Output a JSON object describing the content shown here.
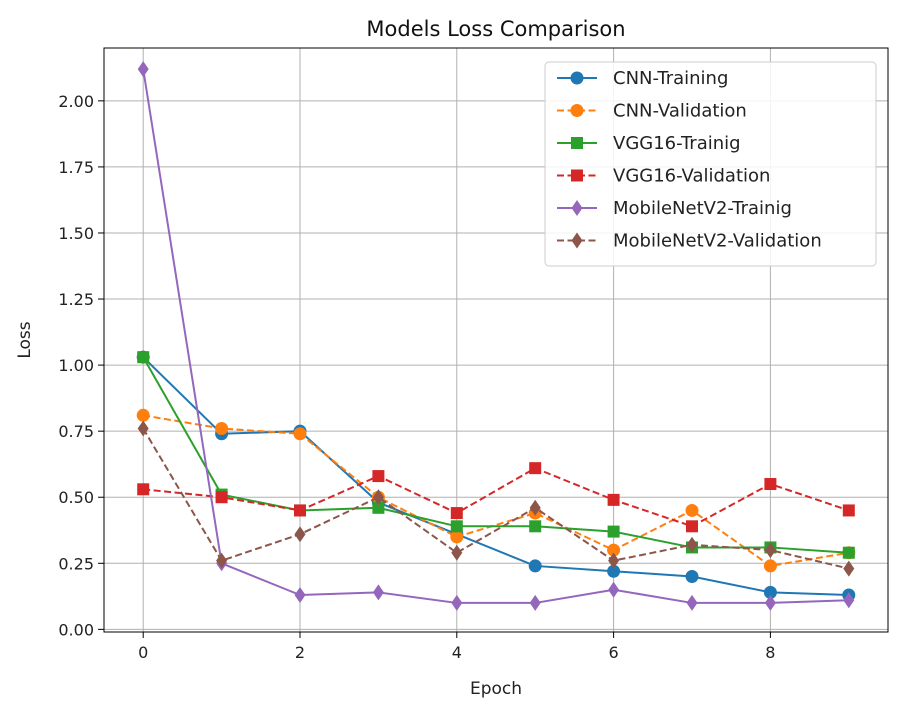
{
  "chart_data": {
    "type": "line",
    "title": "Models Loss Comparison",
    "xlabel": "Epoch",
    "ylabel": "Loss",
    "xlim": [
      -0.5,
      9.5
    ],
    "ylim": [
      -0.01,
      2.2
    ],
    "x_ticks": [
      0,
      2,
      4,
      6,
      8
    ],
    "x_tick_labels": [
      "0",
      "2",
      "4",
      "6",
      "8"
    ],
    "y_ticks": [
      0,
      0.25,
      0.5,
      0.75,
      1.0,
      1.25,
      1.5,
      1.75,
      2.0
    ],
    "y_tick_labels": [
      "0.00",
      "0.25",
      "0.50",
      "0.75",
      "1.00",
      "1.25",
      "1.50",
      "1.75",
      "2.00"
    ],
    "grid": true,
    "legend_position": "top-right",
    "x": [
      0,
      1,
      2,
      3,
      4,
      5,
      6,
      7,
      8,
      9
    ],
    "series": [
      {
        "name": "CNN-Training",
        "color": "#1f77b4",
        "dash": "solid",
        "marker": "circle",
        "values": [
          1.03,
          0.74,
          0.75,
          0.48,
          0.36,
          0.24,
          0.22,
          0.2,
          0.14,
          0.13
        ]
      },
      {
        "name": "CNN-Validation",
        "color": "#ff7f0e",
        "dash": "dashed",
        "marker": "circle",
        "values": [
          0.81,
          0.76,
          0.74,
          0.5,
          0.35,
          0.44,
          0.3,
          0.45,
          0.24,
          0.29
        ]
      },
      {
        "name": "VGG16-Trainig",
        "color": "#2ca02c",
        "dash": "solid",
        "marker": "square",
        "values": [
          1.03,
          0.51,
          0.45,
          0.46,
          0.39,
          0.39,
          0.37,
          0.31,
          0.31,
          0.29
        ]
      },
      {
        "name": "VGG16-Validation",
        "color": "#d62728",
        "dash": "dashed",
        "marker": "square",
        "values": [
          0.53,
          0.5,
          0.45,
          0.58,
          0.44,
          0.61,
          0.49,
          0.39,
          0.55,
          0.45
        ]
      },
      {
        "name": "MobileNetV2-Trainig",
        "color": "#9467bd",
        "dash": "solid",
        "marker": "diamond",
        "values": [
          2.12,
          0.25,
          0.13,
          0.14,
          0.1,
          0.1,
          0.15,
          0.1,
          0.1,
          0.11
        ]
      },
      {
        "name": "MobileNetV2-Validation",
        "color": "#8c564b",
        "dash": "dashed",
        "marker": "diamond",
        "values": [
          0.76,
          0.26,
          0.36,
          0.5,
          0.29,
          0.46,
          0.26,
          0.32,
          0.3,
          0.23
        ]
      }
    ]
  }
}
